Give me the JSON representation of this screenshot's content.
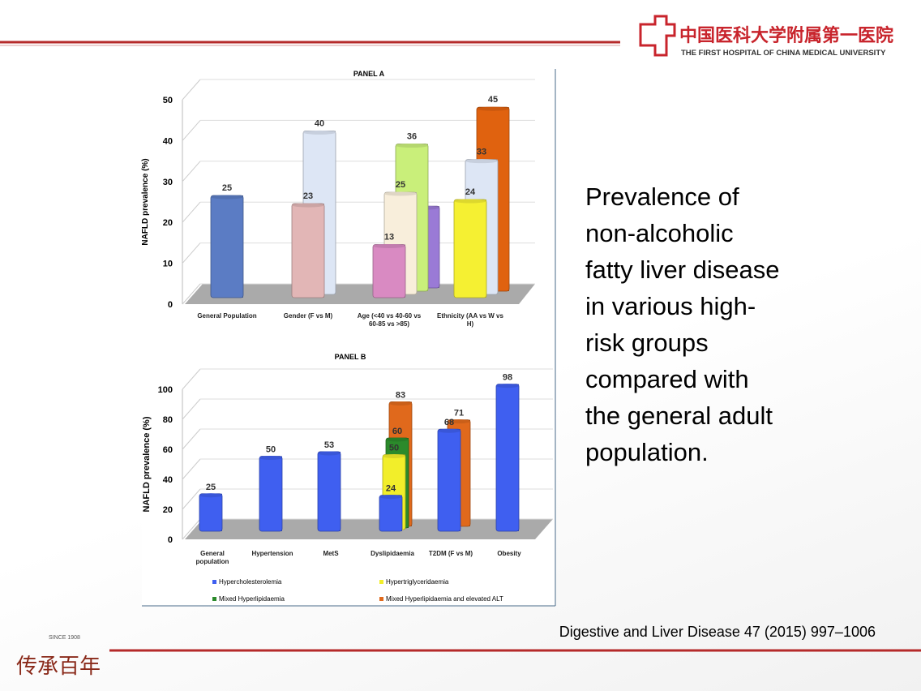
{
  "header": {
    "hospital_cn": "中国医科大学附属第一医院",
    "hospital_en": "THE FIRST HOSPITAL OF CHINA MEDICAL UNIVERSITY"
  },
  "footer": {
    "since": "SINCE 1908",
    "motto": "传承百年",
    "citation": "Digestive and Liver Disease 47 (2015) 997–1006"
  },
  "text_lines": [
    "Prevalence of",
    "non-alcoholic",
    "fatty liver disease",
    "in various high-",
    "risk groups",
    "compared with",
    "the general adult",
    "population."
  ],
  "chart_data": [
    {
      "type": "bar3d-groups",
      "title": "PANEL A",
      "y_label": "NAFLD prevalence (%)",
      "categories": [
        "General Population",
        "Gender (F vs M)",
        "Age (<40 vs 40-60 vs 60-85 vs >85)",
        "Ethnicity (AA vs W vs H)"
      ],
      "values": [
        [
          25
        ],
        [
          23,
          40
        ],
        [
          13,
          25,
          36,
          20
        ],
        [
          24,
          33,
          45
        ]
      ],
      "colors": [
        [
          "#5b7cc4"
        ],
        [
          "#e2b6b6",
          "#dde6f5"
        ],
        [
          "#d98ac2",
          "#f8eedb",
          "#c9ef7a",
          "#9a7ad6"
        ],
        [
          "#f5f032",
          "#dde6f5",
          "#e0620f"
        ]
      ],
      "ylim": [
        0,
        50
      ],
      "yticks": [
        0,
        10,
        20,
        30,
        40,
        50
      ]
    },
    {
      "type": "bar3d-series",
      "title": "PANEL B",
      "y_label": "NAFLD prevalence (%)",
      "categories": [
        "General population",
        "Hypertension",
        "MetS",
        "Dyslipidaemia",
        "T2DM (F vs M)",
        "Obesity"
      ],
      "series": [
        {
          "name": "Hypercholesterolemia",
          "color": "#3f5ff0",
          "values": [
            25,
            50,
            53,
            24,
            68,
            98
          ]
        },
        {
          "name": "Hypertriglyceridaemia",
          "color": "#f2ee2a",
          "values": [
            null,
            null,
            null,
            50,
            null,
            null
          ]
        },
        {
          "name": "Mixed Hyperlipidaemia",
          "color": "#2b8a2b",
          "values": [
            null,
            null,
            null,
            60,
            null,
            null
          ]
        },
        {
          "name": "Mixed Hyperlipidaemia and elevated ALT",
          "color": "#e0691c",
          "values": [
            null,
            null,
            null,
            83,
            71,
            null
          ]
        }
      ],
      "ylim": [
        0,
        100
      ],
      "yticks": [
        0,
        20,
        40,
        60,
        80,
        100
      ]
    }
  ]
}
